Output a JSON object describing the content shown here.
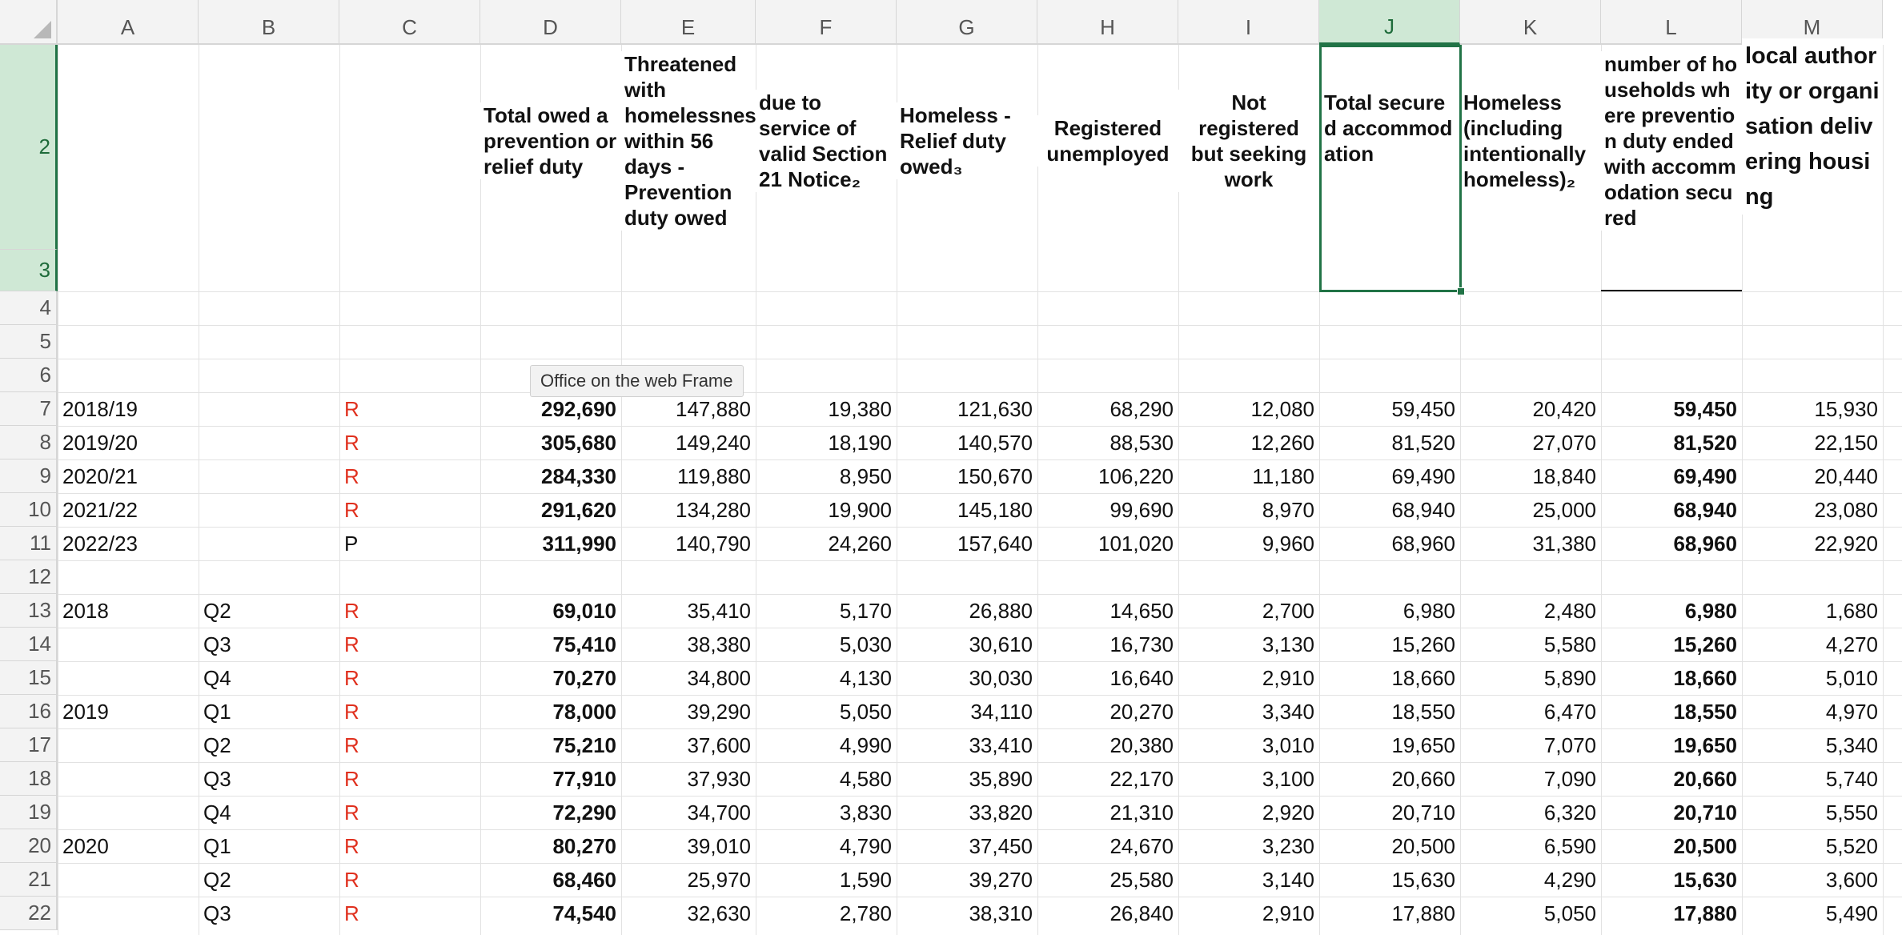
{
  "columns": [
    "A",
    "B",
    "C",
    "D",
    "E",
    "F",
    "G",
    "H",
    "I",
    "J",
    "K",
    "L",
    "M"
  ],
  "selected_column": "J",
  "rows": [
    "2",
    "3",
    "4",
    "5",
    "6",
    "7",
    "8",
    "9",
    "10",
    "11",
    "12",
    "13",
    "14",
    "15",
    "16",
    "17",
    "18",
    "19",
    "20",
    "21",
    "22"
  ],
  "headers": {
    "D": "Total owed a prevention or relief duty",
    "E": "Threatened with homelessness within 56 days - Prevention duty owed",
    "F": "due to service of valid Section 21 Notice₂",
    "G": "Homeless - Relief duty owed₃",
    "H": "Registered unemployed",
    "I": "Not registered but seeking work",
    "J": "Total secured accommodation",
    "K": "Homeless (including intentionally homeless)₂",
    "L": "number of households where prevention duty ended with accommodation secured",
    "M": "local authority or organisation delivering housing"
  },
  "tooltip": "Office on the web Frame",
  "data_rows": [
    {
      "a": "2018/19",
      "b": "",
      "c": "R",
      "d": "292,690",
      "e": "147,880",
      "f": "19,380",
      "g": "121,630",
      "h": "68,290",
      "i": "12,080",
      "j": "59,450",
      "k": "20,420",
      "l": "59,450",
      "m": "15,930"
    },
    {
      "a": "2019/20",
      "b": "",
      "c": "R",
      "d": "305,680",
      "e": "149,240",
      "f": "18,190",
      "g": "140,570",
      "h": "88,530",
      "i": "12,260",
      "j": "81,520",
      "k": "27,070",
      "l": "81,520",
      "m": "22,150"
    },
    {
      "a": "2020/21",
      "b": "",
      "c": "R",
      "d": "284,330",
      "e": "119,880",
      "f": "8,950",
      "g": "150,670",
      "h": "106,220",
      "i": "11,180",
      "j": "69,490",
      "k": "18,840",
      "l": "69,490",
      "m": "20,440"
    },
    {
      "a": "2021/22",
      "b": "",
      "c": "R",
      "d": "291,620",
      "e": "134,280",
      "f": "19,900",
      "g": "145,180",
      "h": "99,690",
      "i": "8,970",
      "j": "68,940",
      "k": "25,000",
      "l": "68,940",
      "m": "23,080"
    },
    {
      "a": "2022/23",
      "b": "",
      "c": "P",
      "d": "311,990",
      "e": "140,790",
      "f": "24,260",
      "g": "157,640",
      "h": "101,020",
      "i": "9,960",
      "j": "68,960",
      "k": "31,380",
      "l": "68,960",
      "m": "22,920"
    },
    {
      "a": "",
      "b": "",
      "c": "",
      "d": "",
      "e": "",
      "f": "",
      "g": "",
      "h": "",
      "i": "",
      "j": "",
      "k": "",
      "l": "",
      "m": ""
    },
    {
      "a": "2018",
      "b": "Q2",
      "c": "R",
      "d": "69,010",
      "e": "35,410",
      "f": "5,170",
      "g": "26,880",
      "h": "14,650",
      "i": "2,700",
      "j": "6,980",
      "k": "2,480",
      "l": "6,980",
      "m": "1,680"
    },
    {
      "a": "",
      "b": "Q3",
      "c": "R",
      "d": "75,410",
      "e": "38,380",
      "f": "5,030",
      "g": "30,610",
      "h": "16,730",
      "i": "3,130",
      "j": "15,260",
      "k": "5,580",
      "l": "15,260",
      "m": "4,270"
    },
    {
      "a": "",
      "b": "Q4",
      "c": "R",
      "d": "70,270",
      "e": "34,800",
      "f": "4,130",
      "g": "30,030",
      "h": "16,640",
      "i": "2,910",
      "j": "18,660",
      "k": "5,890",
      "l": "18,660",
      "m": "5,010"
    },
    {
      "a": "2019",
      "b": "Q1",
      "c": "R",
      "d": "78,000",
      "e": "39,290",
      "f": "5,050",
      "g": "34,110",
      "h": "20,270",
      "i": "3,340",
      "j": "18,550",
      "k": "6,470",
      "l": "18,550",
      "m": "4,970"
    },
    {
      "a": "",
      "b": "Q2",
      "c": "R",
      "d": "75,210",
      "e": "37,600",
      "f": "4,990",
      "g": "33,410",
      "h": "20,380",
      "i": "3,010",
      "j": "19,650",
      "k": "7,070",
      "l": "19,650",
      "m": "5,340"
    },
    {
      "a": "",
      "b": "Q3",
      "c": "R",
      "d": "77,910",
      "e": "37,930",
      "f": "4,580",
      "g": "35,890",
      "h": "22,170",
      "i": "3,100",
      "j": "20,660",
      "k": "7,090",
      "l": "20,660",
      "m": "5,740"
    },
    {
      "a": "",
      "b": "Q4",
      "c": "R",
      "d": "72,290",
      "e": "34,700",
      "f": "3,830",
      "g": "33,820",
      "h": "21,310",
      "i": "2,920",
      "j": "20,710",
      "k": "6,320",
      "l": "20,710",
      "m": "5,550"
    },
    {
      "a": "2020",
      "b": "Q1",
      "c": "R",
      "d": "80,270",
      "e": "39,010",
      "f": "4,790",
      "g": "37,450",
      "h": "24,670",
      "i": "3,230",
      "j": "20,500",
      "k": "6,590",
      "l": "20,500",
      "m": "5,520"
    },
    {
      "a": "",
      "b": "Q2",
      "c": "R",
      "d": "68,460",
      "e": "25,970",
      "f": "1,590",
      "g": "39,270",
      "h": "25,580",
      "i": "3,140",
      "j": "15,630",
      "k": "4,290",
      "l": "15,630",
      "m": "3,600"
    },
    {
      "a": "",
      "b": "Q3",
      "c": "R",
      "d": "74,540",
      "e": "32,630",
      "f": "2,780",
      "g": "38,310",
      "h": "26,840",
      "i": "2,910",
      "j": "17,880",
      "k": "5,050",
      "l": "17,880",
      "m": "5,490"
    }
  ],
  "colors": {
    "accent": "#217346",
    "header_bg": "#f3f3f3",
    "selected_header_bg": "#cfe8d5",
    "status_red": "#e0301e"
  }
}
